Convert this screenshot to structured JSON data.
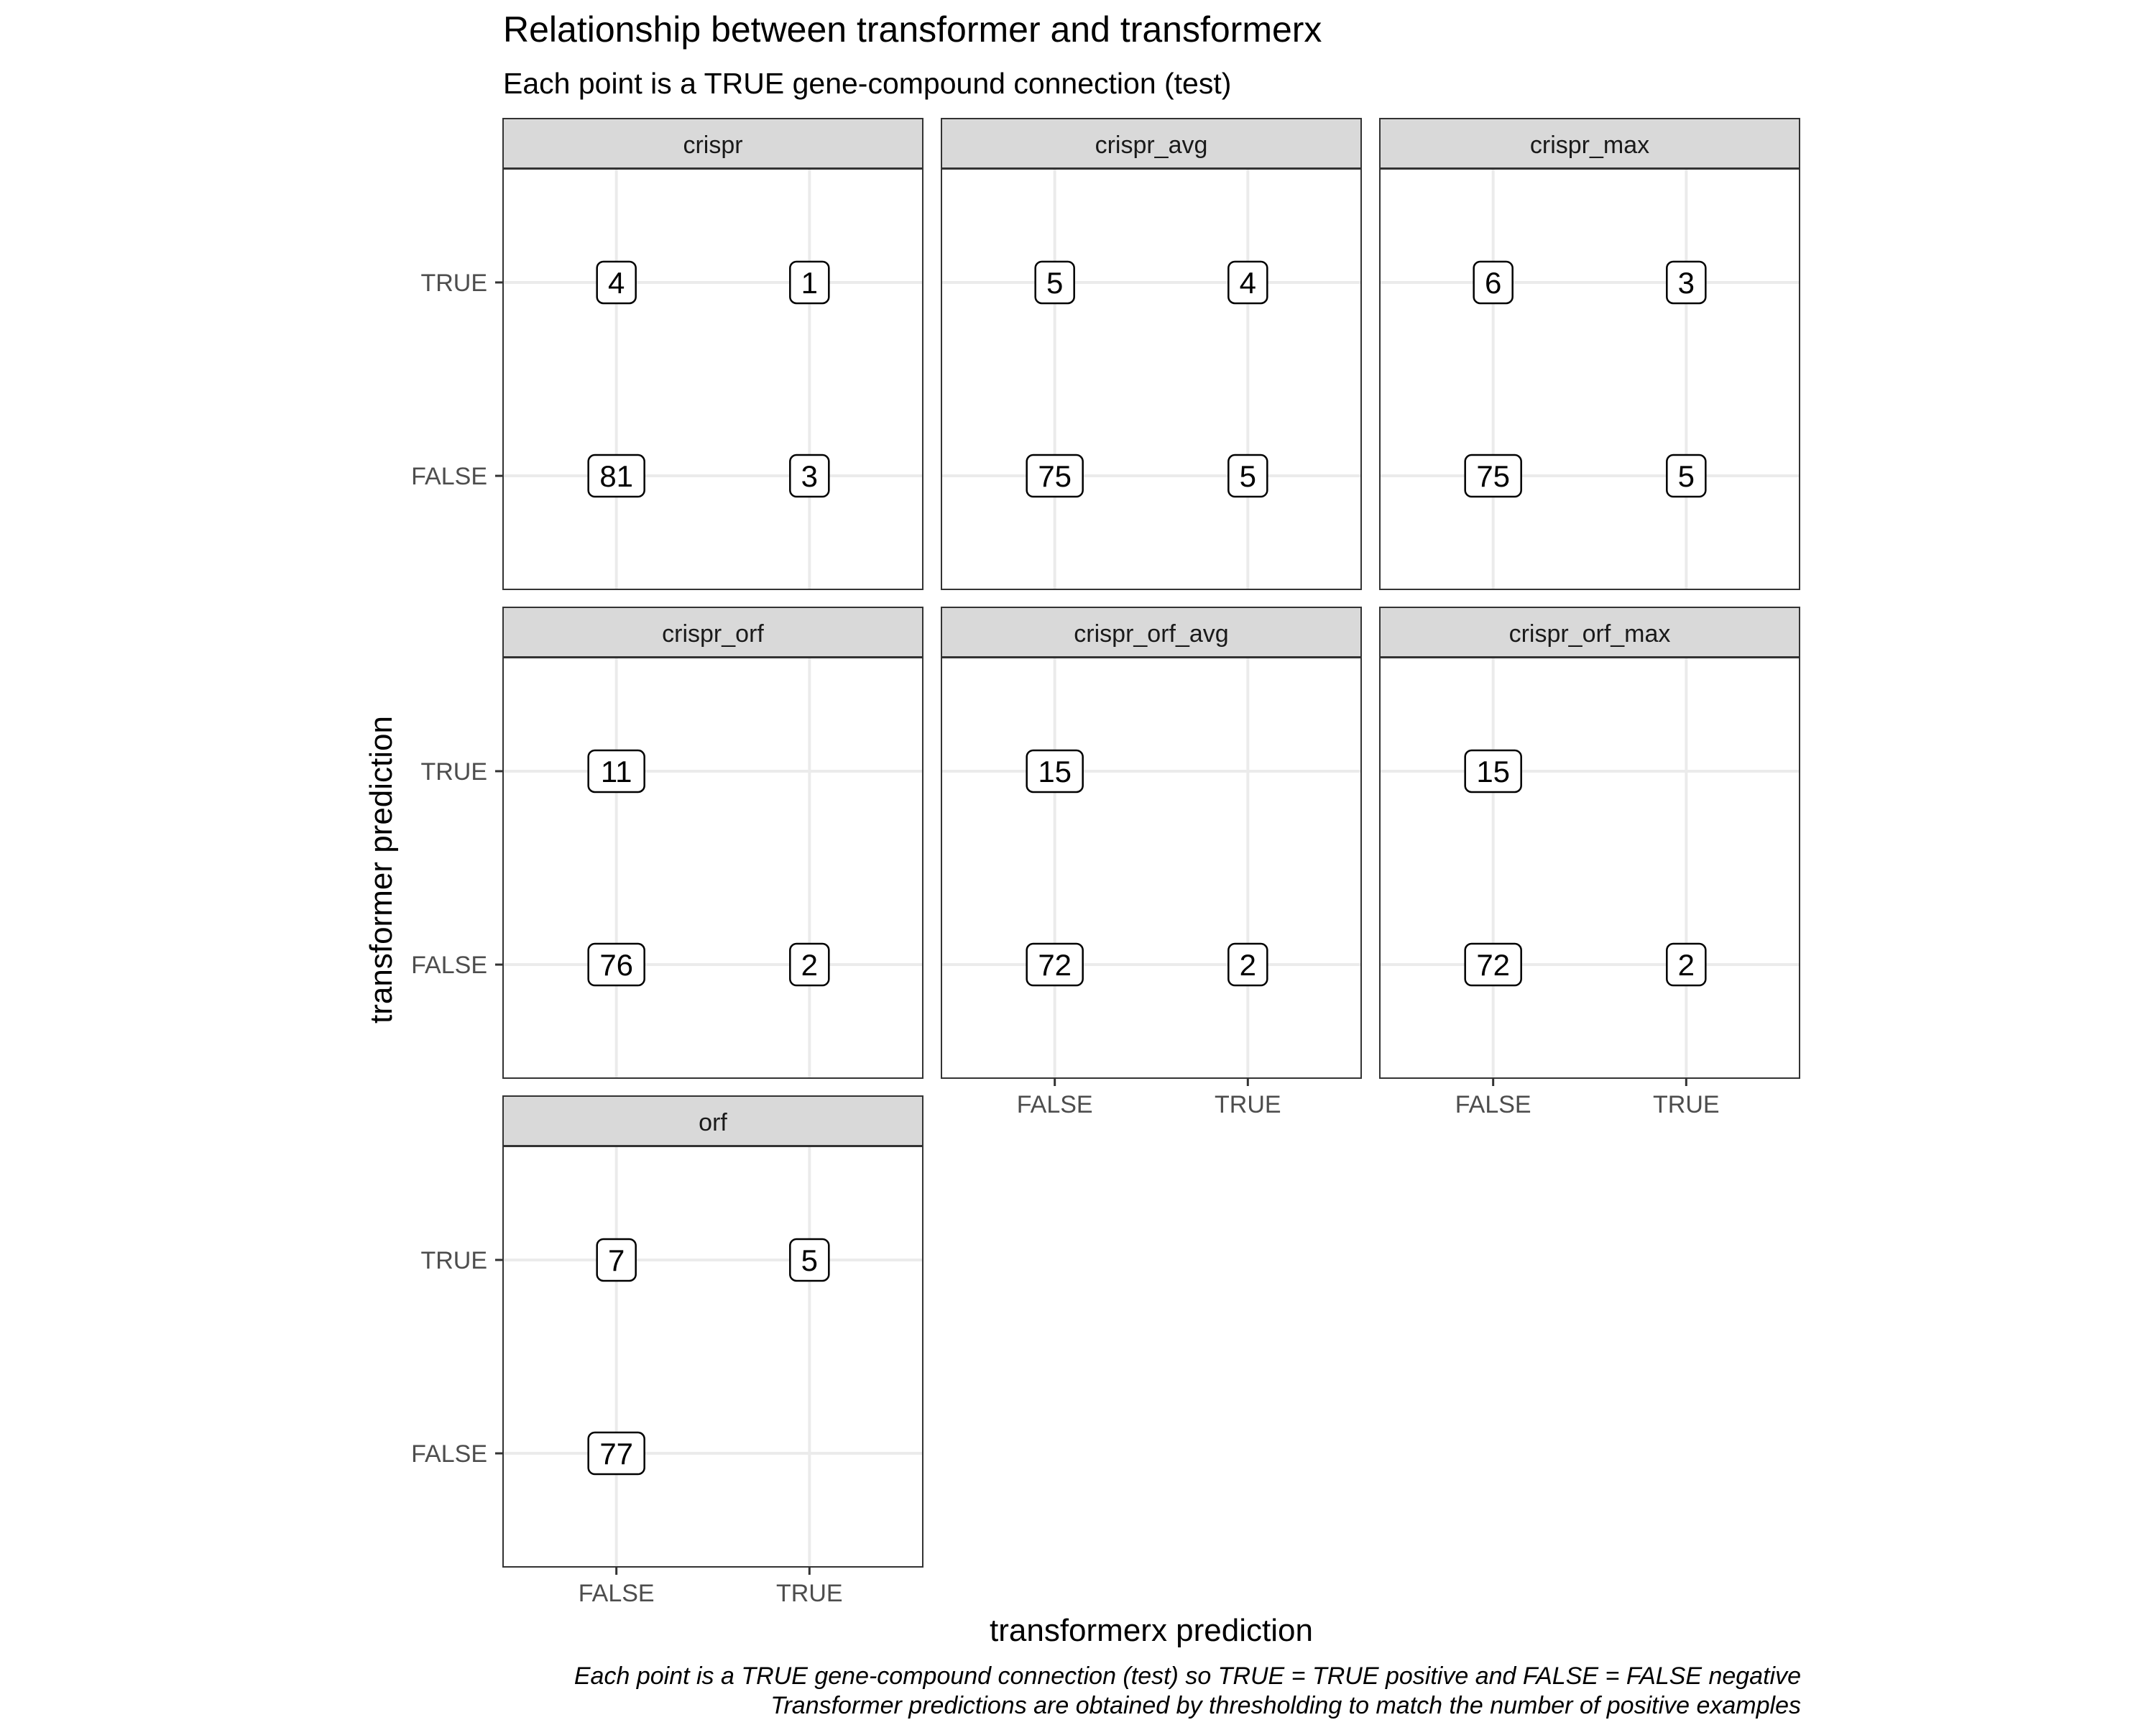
{
  "chart_data": {
    "type": "table",
    "title": "Relationship between transformer and transformerx",
    "subtitle": "Each point is a TRUE gene-compound connection (test)",
    "xlabel": "transformerx prediction",
    "ylabel": "transformer prediction",
    "x_categories": [
      "FALSE",
      "TRUE"
    ],
    "y_categories": [
      "FALSE",
      "TRUE"
    ],
    "caption": [
      "Each point is a TRUE gene-compound connection (test) so TRUE = TRUE positive and FALSE = FALSE negative",
      "Transformer predictions are obtained by thresholding to match the number of positive examples"
    ],
    "grid": true,
    "facets": [
      {
        "name": "crispr",
        "cells": [
          {
            "x": "FALSE",
            "y": "TRUE",
            "value": 4
          },
          {
            "x": "TRUE",
            "y": "TRUE",
            "value": 1
          },
          {
            "x": "FALSE",
            "y": "FALSE",
            "value": 81
          },
          {
            "x": "TRUE",
            "y": "FALSE",
            "value": 3
          }
        ]
      },
      {
        "name": "crispr_avg",
        "cells": [
          {
            "x": "FALSE",
            "y": "TRUE",
            "value": 5
          },
          {
            "x": "TRUE",
            "y": "TRUE",
            "value": 4
          },
          {
            "x": "FALSE",
            "y": "FALSE",
            "value": 75
          },
          {
            "x": "TRUE",
            "y": "FALSE",
            "value": 5
          }
        ]
      },
      {
        "name": "crispr_max",
        "cells": [
          {
            "x": "FALSE",
            "y": "TRUE",
            "value": 6
          },
          {
            "x": "TRUE",
            "y": "TRUE",
            "value": 3
          },
          {
            "x": "FALSE",
            "y": "FALSE",
            "value": 75
          },
          {
            "x": "TRUE",
            "y": "FALSE",
            "value": 5
          }
        ]
      },
      {
        "name": "crispr_orf",
        "cells": [
          {
            "x": "FALSE",
            "y": "TRUE",
            "value": 11
          },
          {
            "x": "FALSE",
            "y": "FALSE",
            "value": 76
          },
          {
            "x": "TRUE",
            "y": "FALSE",
            "value": 2
          }
        ]
      },
      {
        "name": "crispr_orf_avg",
        "cells": [
          {
            "x": "FALSE",
            "y": "TRUE",
            "value": 15
          },
          {
            "x": "FALSE",
            "y": "FALSE",
            "value": 72
          },
          {
            "x": "TRUE",
            "y": "FALSE",
            "value": 2
          }
        ]
      },
      {
        "name": "crispr_orf_max",
        "cells": [
          {
            "x": "FALSE",
            "y": "TRUE",
            "value": 15
          },
          {
            "x": "FALSE",
            "y": "FALSE",
            "value": 72
          },
          {
            "x": "TRUE",
            "y": "FALSE",
            "value": 2
          }
        ]
      },
      {
        "name": "orf",
        "cells": [
          {
            "x": "FALSE",
            "y": "TRUE",
            "value": 7
          },
          {
            "x": "TRUE",
            "y": "TRUE",
            "value": 5
          },
          {
            "x": "FALSE",
            "y": "FALSE",
            "value": 77
          }
        ]
      }
    ]
  }
}
